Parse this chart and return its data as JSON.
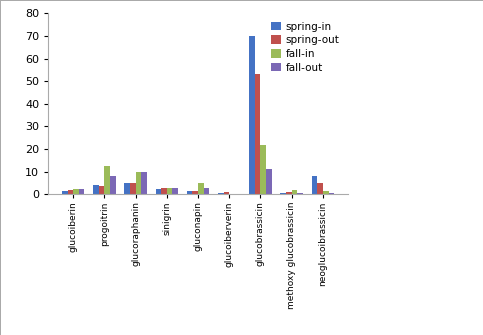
{
  "categories": [
    "glucoiberin",
    "progoitrin",
    "glucoraphanin",
    "sinigrin",
    "gluconapin",
    "glucoiberverin",
    "glucobrassicin",
    "methoxy glucobrassicin",
    "neoglucoibrassicin"
  ],
  "series": {
    "spring-in": [
      1.5,
      4.0,
      5.0,
      2.5,
      1.5,
      0.5,
      70.0,
      0.5,
      8.0
    ],
    "spring-out": [
      2.0,
      3.5,
      5.0,
      3.0,
      1.5,
      1.0,
      53.0,
      1.0,
      5.0
    ],
    "fall-in": [
      2.5,
      12.5,
      10.0,
      3.0,
      5.0,
      0.3,
      22.0,
      2.0,
      1.5
    ],
    "fall-out": [
      2.5,
      8.0,
      10.0,
      3.0,
      3.0,
      0.3,
      11.0,
      0.5,
      0.5
    ]
  },
  "colors": {
    "spring-in": "#4472C4",
    "spring-out": "#C0504D",
    "fall-in": "#9BBB59",
    "fall-out": "#7B68B5"
  },
  "ylim": [
    0,
    80
  ],
  "yticks": [
    0,
    10,
    20,
    30,
    40,
    50,
    60,
    70,
    80
  ],
  "legend_labels": [
    "spring-in",
    "spring-out",
    "fall-in",
    "fall-out"
  ],
  "bar_width": 0.18,
  "background_color": "#FFFFFF",
  "border_color": "#AAAAAA"
}
